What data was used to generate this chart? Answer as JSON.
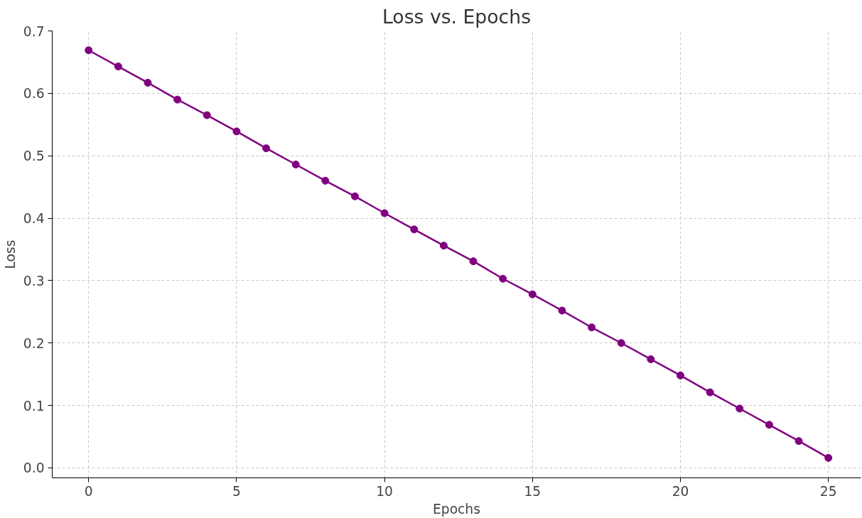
{
  "chart_data": {
    "type": "line",
    "title": "Loss vs. Epochs",
    "xlabel": "Epochs",
    "ylabel": "Loss",
    "x": [
      0,
      1,
      2,
      3,
      4,
      5,
      6,
      7,
      8,
      9,
      10,
      11,
      12,
      13,
      14,
      15,
      16,
      17,
      18,
      19,
      20,
      21,
      22,
      23,
      24,
      25
    ],
    "series": [
      {
        "color": "#800080",
        "values": [
          0.669,
          0.643,
          0.617,
          0.59,
          0.565,
          0.539,
          0.512,
          0.486,
          0.46,
          0.435,
          0.408,
          0.382,
          0.356,
          0.331,
          0.303,
          0.278,
          0.252,
          0.225,
          0.2,
          0.174,
          0.148,
          0.121,
          0.095,
          0.069,
          0.043,
          0.016
        ]
      }
    ],
    "xlim": [
      -1.23,
      26.1
    ],
    "ylim": [
      -0.016,
      0.7
    ],
    "xticks": [
      0,
      5,
      10,
      15,
      20,
      25
    ],
    "yticks": [
      {
        "value": 0,
        "label": "0.0"
      },
      0.1,
      0.2,
      0.3,
      0.4,
      0.5,
      0.6,
      0.7
    ],
    "grid": true,
    "marker": "circle",
    "line_style": "solid"
  }
}
